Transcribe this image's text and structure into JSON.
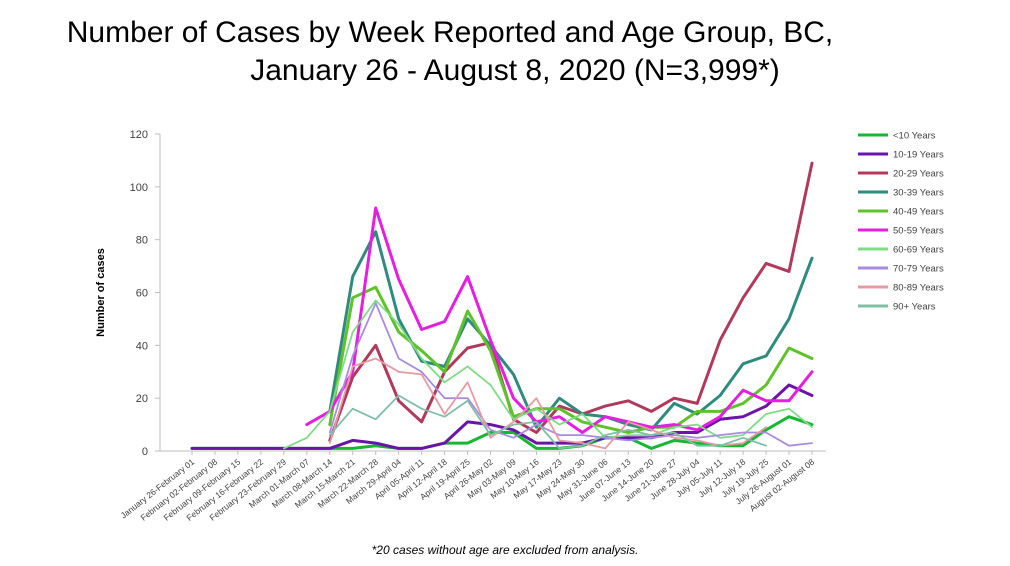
{
  "title": {
    "line1": "Number of Cases by Week Reported and Age Group, BC,",
    "line2": "January 26  - August 8, 2020 (N=3,999*)"
  },
  "footnote": "*20 cases without age are excluded from analysis.",
  "chart_data": {
    "type": "line",
    "ylabel": "Number of cases",
    "xlabel": "",
    "ylim": [
      0,
      120
    ],
    "yticks": [
      0,
      20,
      40,
      60,
      80,
      100,
      120
    ],
    "grid": false,
    "legend_position": "right",
    "categories": [
      "January 26-February 01",
      "February 02-February 08",
      "February 09-February 15",
      "February 16-February 22",
      "February 23-February 29",
      "March 01-March 07",
      "March 08-March 14",
      "March 15-March 21",
      "March 22-March 28",
      "March 29-April 04",
      "April 05-April 11",
      "April 12-April 18",
      "April 19-April 25",
      "April 26-May 02",
      "May 03-May 09",
      "May 10-May 16",
      "May 17-May 23",
      "May 24-May 30",
      "May 31-June 06",
      "June 07-June 13",
      "June 14-June 20",
      "June 21-June 27",
      "June 28-July 04",
      "July 05-July 11",
      "July 12-July 18",
      "July 19-July 25",
      "July 26-August 01",
      "August 02-August 08"
    ],
    "series": [
      {
        "name": "<10 Years",
        "color": "#16b832",
        "values": [
          1,
          1,
          1,
          1,
          1,
          1,
          1,
          1,
          2,
          1,
          1,
          3,
          3,
          7,
          7,
          1,
          1,
          2,
          5,
          5,
          1,
          4,
          3,
          2,
          2,
          8,
          13,
          10
        ]
      },
      {
        "name": "10-19 Years",
        "color": "#6a14a8",
        "values": [
          1,
          1,
          1,
          1,
          1,
          1,
          1,
          4,
          3,
          1,
          1,
          3,
          11,
          10,
          8,
          3,
          3,
          3,
          5,
          5,
          5,
          7,
          7,
          12,
          13,
          17,
          25,
          21
        ]
      },
      {
        "name": "20-29 Years",
        "color": "#b03a5b",
        "values": [
          null,
          null,
          null,
          null,
          null,
          null,
          4,
          28,
          40,
          19,
          11,
          30,
          39,
          41,
          12,
          7,
          17,
          14,
          17,
          19,
          15,
          20,
          18,
          42,
          58,
          71,
          68,
          109
        ]
      },
      {
        "name": "30-39 Years",
        "color": "#2e8b7e",
        "values": [
          null,
          null,
          null,
          null,
          null,
          null,
          15,
          66,
          83,
          50,
          34,
          32,
          50,
          40,
          29,
          9,
          20,
          14,
          13,
          10,
          8,
          18,
          14,
          21,
          33,
          36,
          50,
          73
        ]
      },
      {
        "name": "40-49 Years",
        "color": "#5fc22a",
        "values": [
          null,
          null,
          null,
          null,
          null,
          null,
          10,
          58,
          62,
          45,
          38,
          30,
          53,
          38,
          13,
          16,
          16,
          11,
          9,
          7,
          9,
          9,
          15,
          15,
          18,
          25,
          39,
          35
        ]
      },
      {
        "name": "50-59 Years",
        "color": "#e51ee0",
        "values": [
          null,
          null,
          null,
          null,
          null,
          10,
          15,
          30,
          92,
          65,
          46,
          49,
          66,
          42,
          20,
          11,
          13,
          7,
          13,
          11,
          9,
          10,
          8,
          13,
          23,
          19,
          19,
          30
        ]
      },
      {
        "name": "60-69 Years",
        "color": "#7fdc86",
        "values": [
          null,
          null,
          null,
          null,
          1,
          5,
          15,
          45,
          57,
          48,
          35,
          26,
          32,
          25,
          12,
          16,
          10,
          14,
          5,
          6,
          6,
          9,
          10,
          5,
          6,
          14,
          16,
          9
        ]
      },
      {
        "name": "70-79 Years",
        "color": "#a98be0",
        "values": [
          null,
          null,
          null,
          null,
          null,
          null,
          7,
          36,
          56,
          35,
          30,
          20,
          20,
          8,
          5,
          10,
          6,
          6,
          5,
          4,
          5,
          6,
          5,
          6,
          7,
          7,
          2,
          3
        ]
      },
      {
        "name": "80-89 Years",
        "color": "#e89aa4",
        "values": [
          null,
          null,
          null,
          null,
          null,
          null,
          3,
          32,
          35,
          30,
          29,
          14,
          26,
          5,
          11,
          20,
          4,
          3,
          1,
          11,
          8,
          5,
          4,
          2,
          3,
          9,
          null,
          null
        ]
      },
      {
        "name": "90+ Years",
        "color": "#7fbfa6",
        "values": [
          null,
          null,
          null,
          null,
          null,
          null,
          6,
          16,
          12,
          21,
          16,
          13,
          19,
          6,
          10,
          11,
          1,
          2,
          6,
          8,
          6,
          7,
          2,
          2,
          5,
          2,
          null,
          null
        ]
      }
    ]
  }
}
